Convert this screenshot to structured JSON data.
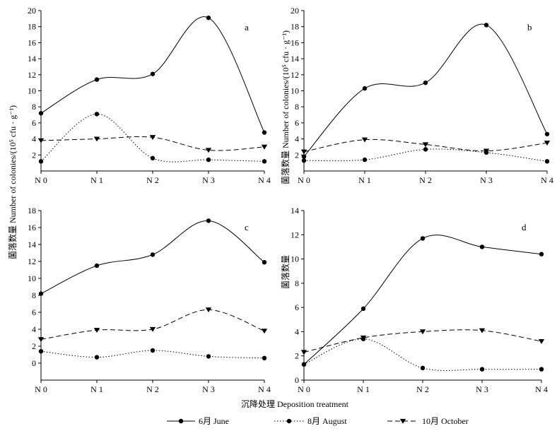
{
  "figure": {
    "shared_ylabel_left": "菌落数量 Number of colonies/(10⁵ cfu · g⁻¹)",
    "shared_ylabel_right": "菌落数量 Number of colonies/(10⁵ cfu · g⁻¹)",
    "ylabel_short": "菌落数量",
    "xlabel": "沉降处理 Deposition treatment"
  },
  "legend": [
    {
      "label": "6月 June",
      "style": "solid",
      "marker": "circle"
    },
    {
      "label": "8月 August",
      "style": "dotted",
      "marker": "circle"
    },
    {
      "label": "10月 October",
      "style": "dashed",
      "marker": "triangle-down"
    }
  ],
  "chart_data": [
    {
      "type": "line",
      "panel": "a",
      "categories": [
        "N 0",
        "N 1",
        "N 2",
        "N 3",
        "N 4"
      ],
      "ylim": [
        0,
        20
      ],
      "yticks": [
        2,
        4,
        6,
        8,
        10,
        12,
        14,
        16,
        18,
        20
      ],
      "series": [
        {
          "name": "6月 June",
          "values": [
            7.2,
            11.4,
            12.1,
            19.1,
            4.8
          ]
        },
        {
          "name": "8月 August",
          "values": [
            1.2,
            7.1,
            1.6,
            1.4,
            1.2
          ]
        },
        {
          "name": "10月 October",
          "values": [
            3.8,
            4.0,
            4.2,
            2.6,
            3.0
          ]
        }
      ]
    },
    {
      "type": "line",
      "panel": "b",
      "categories": [
        "N 0",
        "N 1",
        "N 2",
        "N 3",
        "N 4"
      ],
      "ylim": [
        0,
        20
      ],
      "yticks": [
        2,
        4,
        6,
        8,
        10,
        12,
        14,
        16,
        18,
        20
      ],
      "series": [
        {
          "name": "6月 June",
          "values": [
            1.8,
            10.3,
            11.0,
            18.2,
            4.6
          ]
        },
        {
          "name": "8月 August",
          "values": [
            1.3,
            1.4,
            2.7,
            2.3,
            1.2
          ]
        },
        {
          "name": "10月 October",
          "values": [
            2.4,
            3.9,
            3.3,
            2.5,
            3.5
          ]
        }
      ]
    },
    {
      "type": "line",
      "panel": "c",
      "categories": [
        "N 0",
        "N 1",
        "N 2",
        "N 3",
        "N 4"
      ],
      "ylim": [
        -2,
        18
      ],
      "yticks": [
        0,
        2,
        4,
        6,
        8,
        10,
        12,
        14,
        16,
        18
      ],
      "series": [
        {
          "name": "6月 June",
          "values": [
            8.2,
            11.5,
            12.8,
            16.8,
            11.9
          ]
        },
        {
          "name": "8月 August",
          "values": [
            1.4,
            0.7,
            1.5,
            0.8,
            0.6
          ]
        },
        {
          "name": "10月 October",
          "values": [
            2.8,
            3.9,
            4.0,
            6.3,
            3.8
          ]
        }
      ]
    },
    {
      "type": "line",
      "panel": "d",
      "categories": [
        "N 0",
        "N 1",
        "N 2",
        "N 3",
        "N 4"
      ],
      "ylim": [
        0,
        14
      ],
      "yticks": [
        0,
        2,
        4,
        6,
        8,
        10,
        12,
        14
      ],
      "series": [
        {
          "name": "6月 June",
          "values": [
            1.3,
            5.9,
            11.7,
            11.0,
            10.4
          ]
        },
        {
          "name": "8月 August",
          "values": [
            1.3,
            3.4,
            1.0,
            0.9,
            0.9
          ]
        },
        {
          "name": "10月 October",
          "values": [
            2.3,
            3.5,
            4.0,
            4.1,
            3.2
          ]
        }
      ]
    }
  ]
}
